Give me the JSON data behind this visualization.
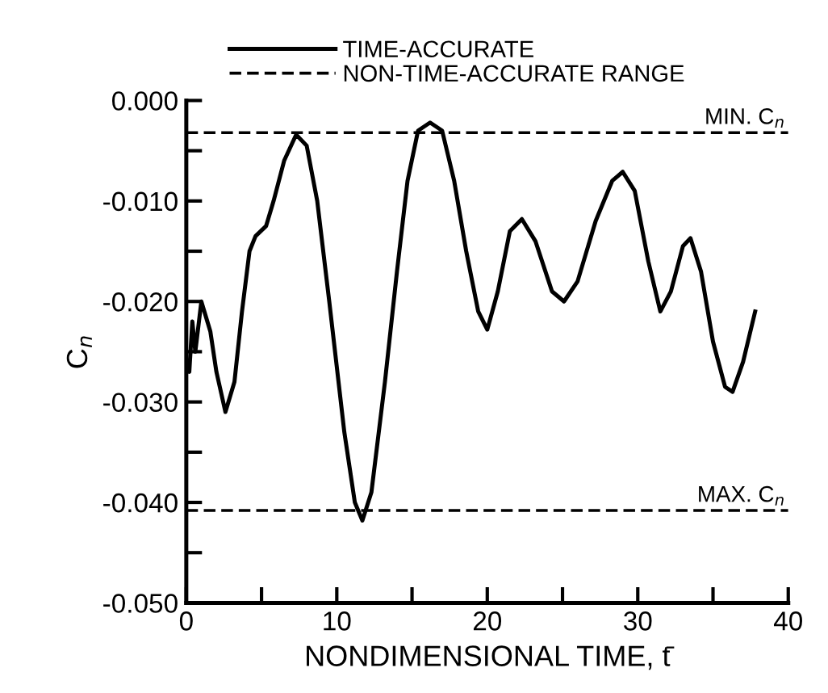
{
  "chart_data": {
    "type": "line",
    "xlabel": "NONDIMENSIONAL TIME, t̄",
    "ylabel": "C$_{n}$",
    "xlim": [
      0,
      40
    ],
    "ylim": [
      -0.05,
      0.0
    ],
    "xticks": [
      0,
      {
        "value": 5,
        "label": null
      },
      10,
      {
        "value": 15,
        "label": null
      },
      20,
      {
        "value": 25,
        "label": null
      },
      30,
      {
        "value": 35,
        "label": null
      },
      40
    ],
    "yticks": [
      {
        "value": -0.05,
        "label": "-0.050"
      },
      {
        "value": -0.045,
        "label": null
      },
      {
        "value": -0.04,
        "label": "-0.040"
      },
      {
        "value": -0.035,
        "label": null
      },
      {
        "value": -0.03,
        "label": "-0.030"
      },
      {
        "value": -0.025,
        "label": null
      },
      {
        "value": -0.02,
        "label": "-0.020"
      },
      {
        "value": -0.015,
        "label": null
      },
      {
        "value": -0.01,
        "label": "-0.010"
      },
      {
        "value": -0.005,
        "label": null
      },
      {
        "value": 0.0,
        "label": "0.000"
      }
    ],
    "grid": false,
    "legend": "top",
    "line_style": "solid",
    "marker": "none",
    "series": [
      {
        "name": "TIME-ACCURATE",
        "color": "#000000",
        "x": [
          0,
          0.2,
          0.4,
          0.6,
          1.0,
          1.6,
          2.0,
          2.6,
          3.2,
          3.7,
          4.2,
          4.6,
          5.3,
          5.8,
          6.5,
          7.3,
          8.0,
          8.7,
          9.5,
          10.5,
          11.2,
          11.7,
          12.3,
          13.2,
          14.0,
          14.7,
          15.4,
          16.2,
          17.0,
          17.8,
          18.6,
          19.4,
          20.0,
          20.7,
          21.5,
          22.3,
          23.2,
          24.3,
          25.1,
          26.0,
          27.2,
          28.3,
          29.0,
          29.8,
          30.7,
          31.5,
          32.2,
          33.0,
          33.5,
          34.2,
          35.0,
          35.8,
          36.3,
          37.0,
          37.8
        ],
        "values": [
          -0.026,
          -0.027,
          -0.022,
          -0.025,
          -0.02,
          -0.023,
          -0.027,
          -0.031,
          -0.028,
          -0.021,
          -0.015,
          -0.0135,
          -0.0125,
          -0.01,
          -0.006,
          -0.0034,
          -0.0045,
          -0.01,
          -0.02,
          -0.033,
          -0.04,
          -0.0418,
          -0.039,
          -0.028,
          -0.017,
          -0.008,
          -0.003,
          -0.0022,
          -0.003,
          -0.008,
          -0.015,
          -0.021,
          -0.0228,
          -0.019,
          -0.013,
          -0.0118,
          -0.014,
          -0.019,
          -0.02,
          -0.018,
          -0.012,
          -0.008,
          -0.0071,
          -0.009,
          -0.016,
          -0.021,
          -0.019,
          -0.0145,
          -0.0137,
          -0.017,
          -0.024,
          -0.0285,
          -0.029,
          -0.026,
          -0.021
        ]
      }
    ],
    "ref_lines": [
      {
        "axis": "y",
        "value": -0.0032,
        "label": "MIN. C$_{n}$",
        "color": "#000000",
        "line_style": "dashed"
      },
      {
        "axis": "y",
        "value": -0.0408,
        "label": "MAX. C$_{n}$",
        "color": "#000000",
        "line_style": "dashed"
      }
    ],
    "annotations": [
      "NON-TIME-ACCURATE RANGE"
    ]
  }
}
